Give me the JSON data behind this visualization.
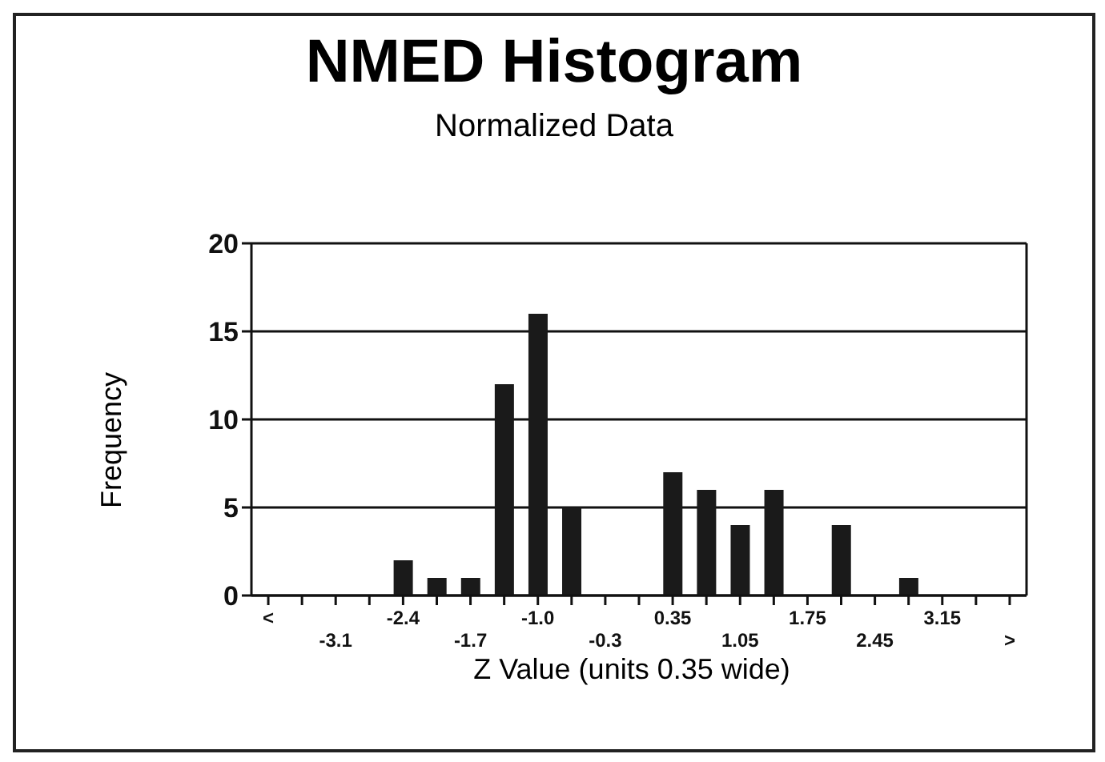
{
  "chart_data": {
    "type": "bar",
    "title": "NMED Histogram",
    "subtitle": "Normalized Data",
    "xlabel": "Z Value (units 0.35 wide)",
    "ylabel": "Frequency",
    "categories": [
      "<",
      null,
      "-3.1",
      null,
      "-2.4",
      null,
      "-1.7",
      null,
      "-1.0",
      null,
      "-0.3",
      null,
      "0.35",
      null,
      "1.05",
      null,
      "1.75",
      null,
      "2.45",
      null,
      "3.15",
      null,
      ">"
    ],
    "values": [
      0,
      0,
      0,
      0,
      2,
      1,
      1,
      12,
      16,
      5,
      0,
      0,
      7,
      6,
      4,
      6,
      0,
      4,
      0,
      1,
      0,
      0,
      0
    ],
    "color": "#1a1a1a",
    "ylim": [
      0,
      20
    ],
    "yticks": [
      0,
      5,
      10,
      15,
      20
    ],
    "grid": "y"
  }
}
